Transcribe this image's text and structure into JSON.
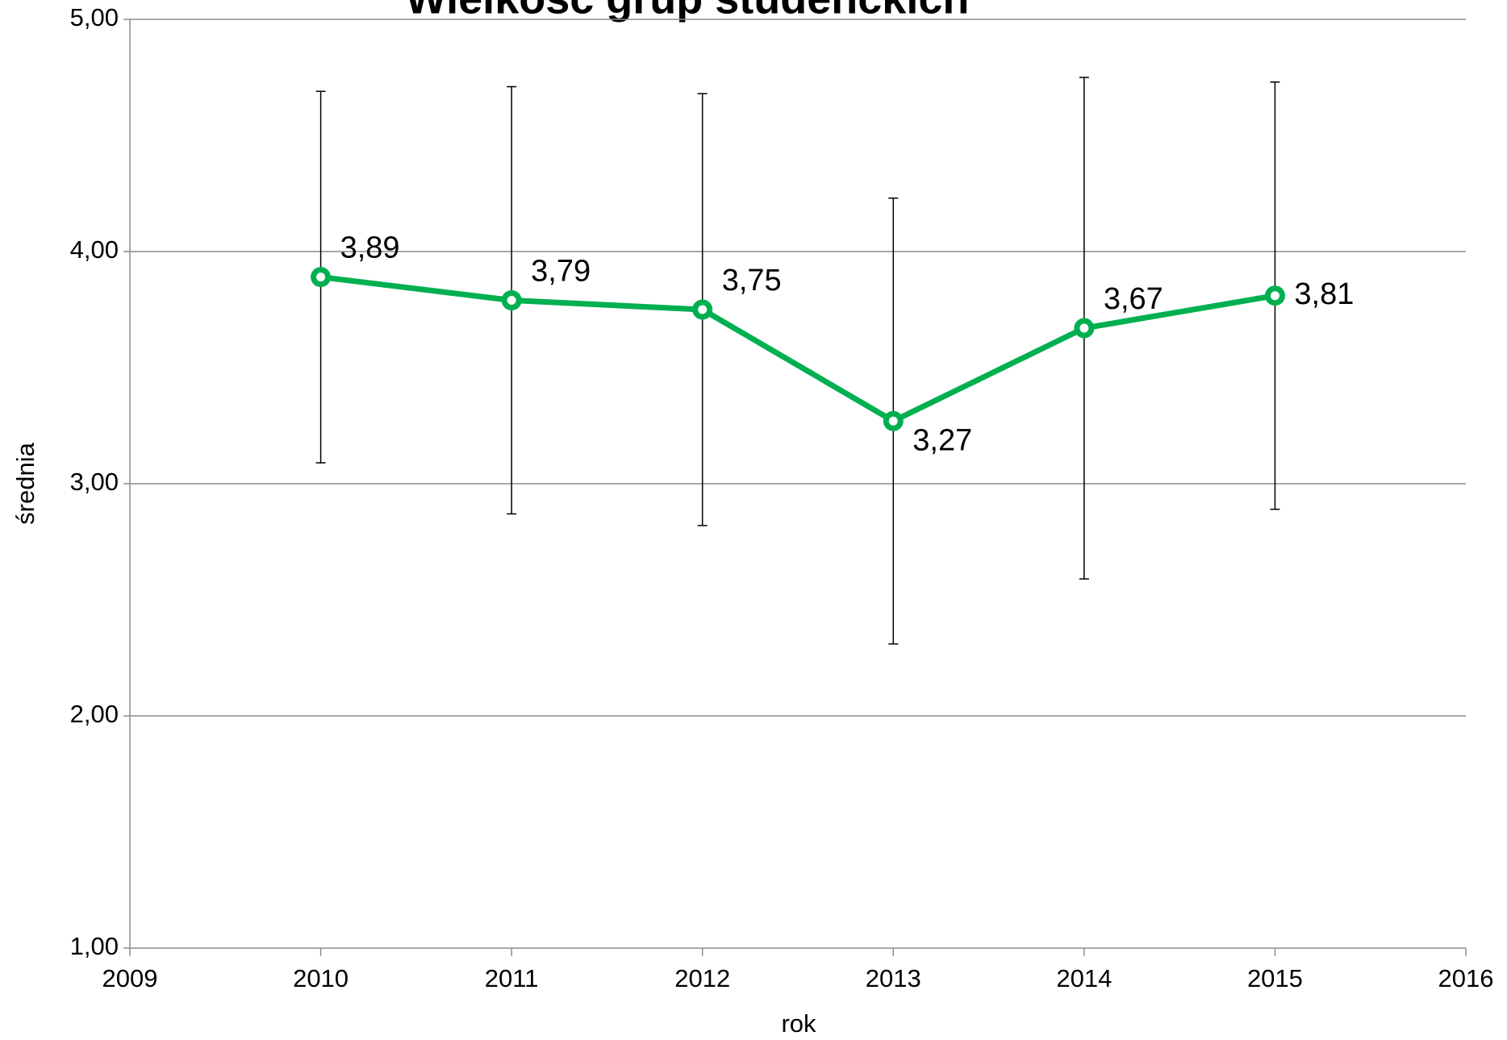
{
  "chart_data": {
    "type": "line",
    "title": "Wielkość grup studenckich",
    "x_label": "rok",
    "y_label": "średnia",
    "x": [
      2010,
      2011,
      2012,
      2013,
      2014,
      2015
    ],
    "series": [
      {
        "name": "średnia",
        "color": "#00b050",
        "values": [
          3.89,
          3.79,
          3.75,
          3.27,
          3.67,
          3.81
        ],
        "value_labels": [
          "3,89",
          "3,79",
          "3,75",
          "3,27",
          "3,67",
          "3,81"
        ],
        "errors": [
          0.8,
          0.92,
          0.93,
          0.96,
          1.08,
          0.92
        ]
      }
    ],
    "xlim": [
      2009,
      2016
    ],
    "xticks": [
      2009,
      2010,
      2011,
      2012,
      2013,
      2014,
      2015,
      2016
    ],
    "ylim": [
      1,
      5
    ],
    "yticks": [
      {
        "value": 1,
        "label": "1,00"
      },
      {
        "value": 2,
        "label": "2,00"
      },
      {
        "value": 3,
        "label": "3,00"
      },
      {
        "value": 4,
        "label": "4,00"
      },
      {
        "value": 5,
        "label": "5,00"
      }
    ],
    "grid": true
  }
}
